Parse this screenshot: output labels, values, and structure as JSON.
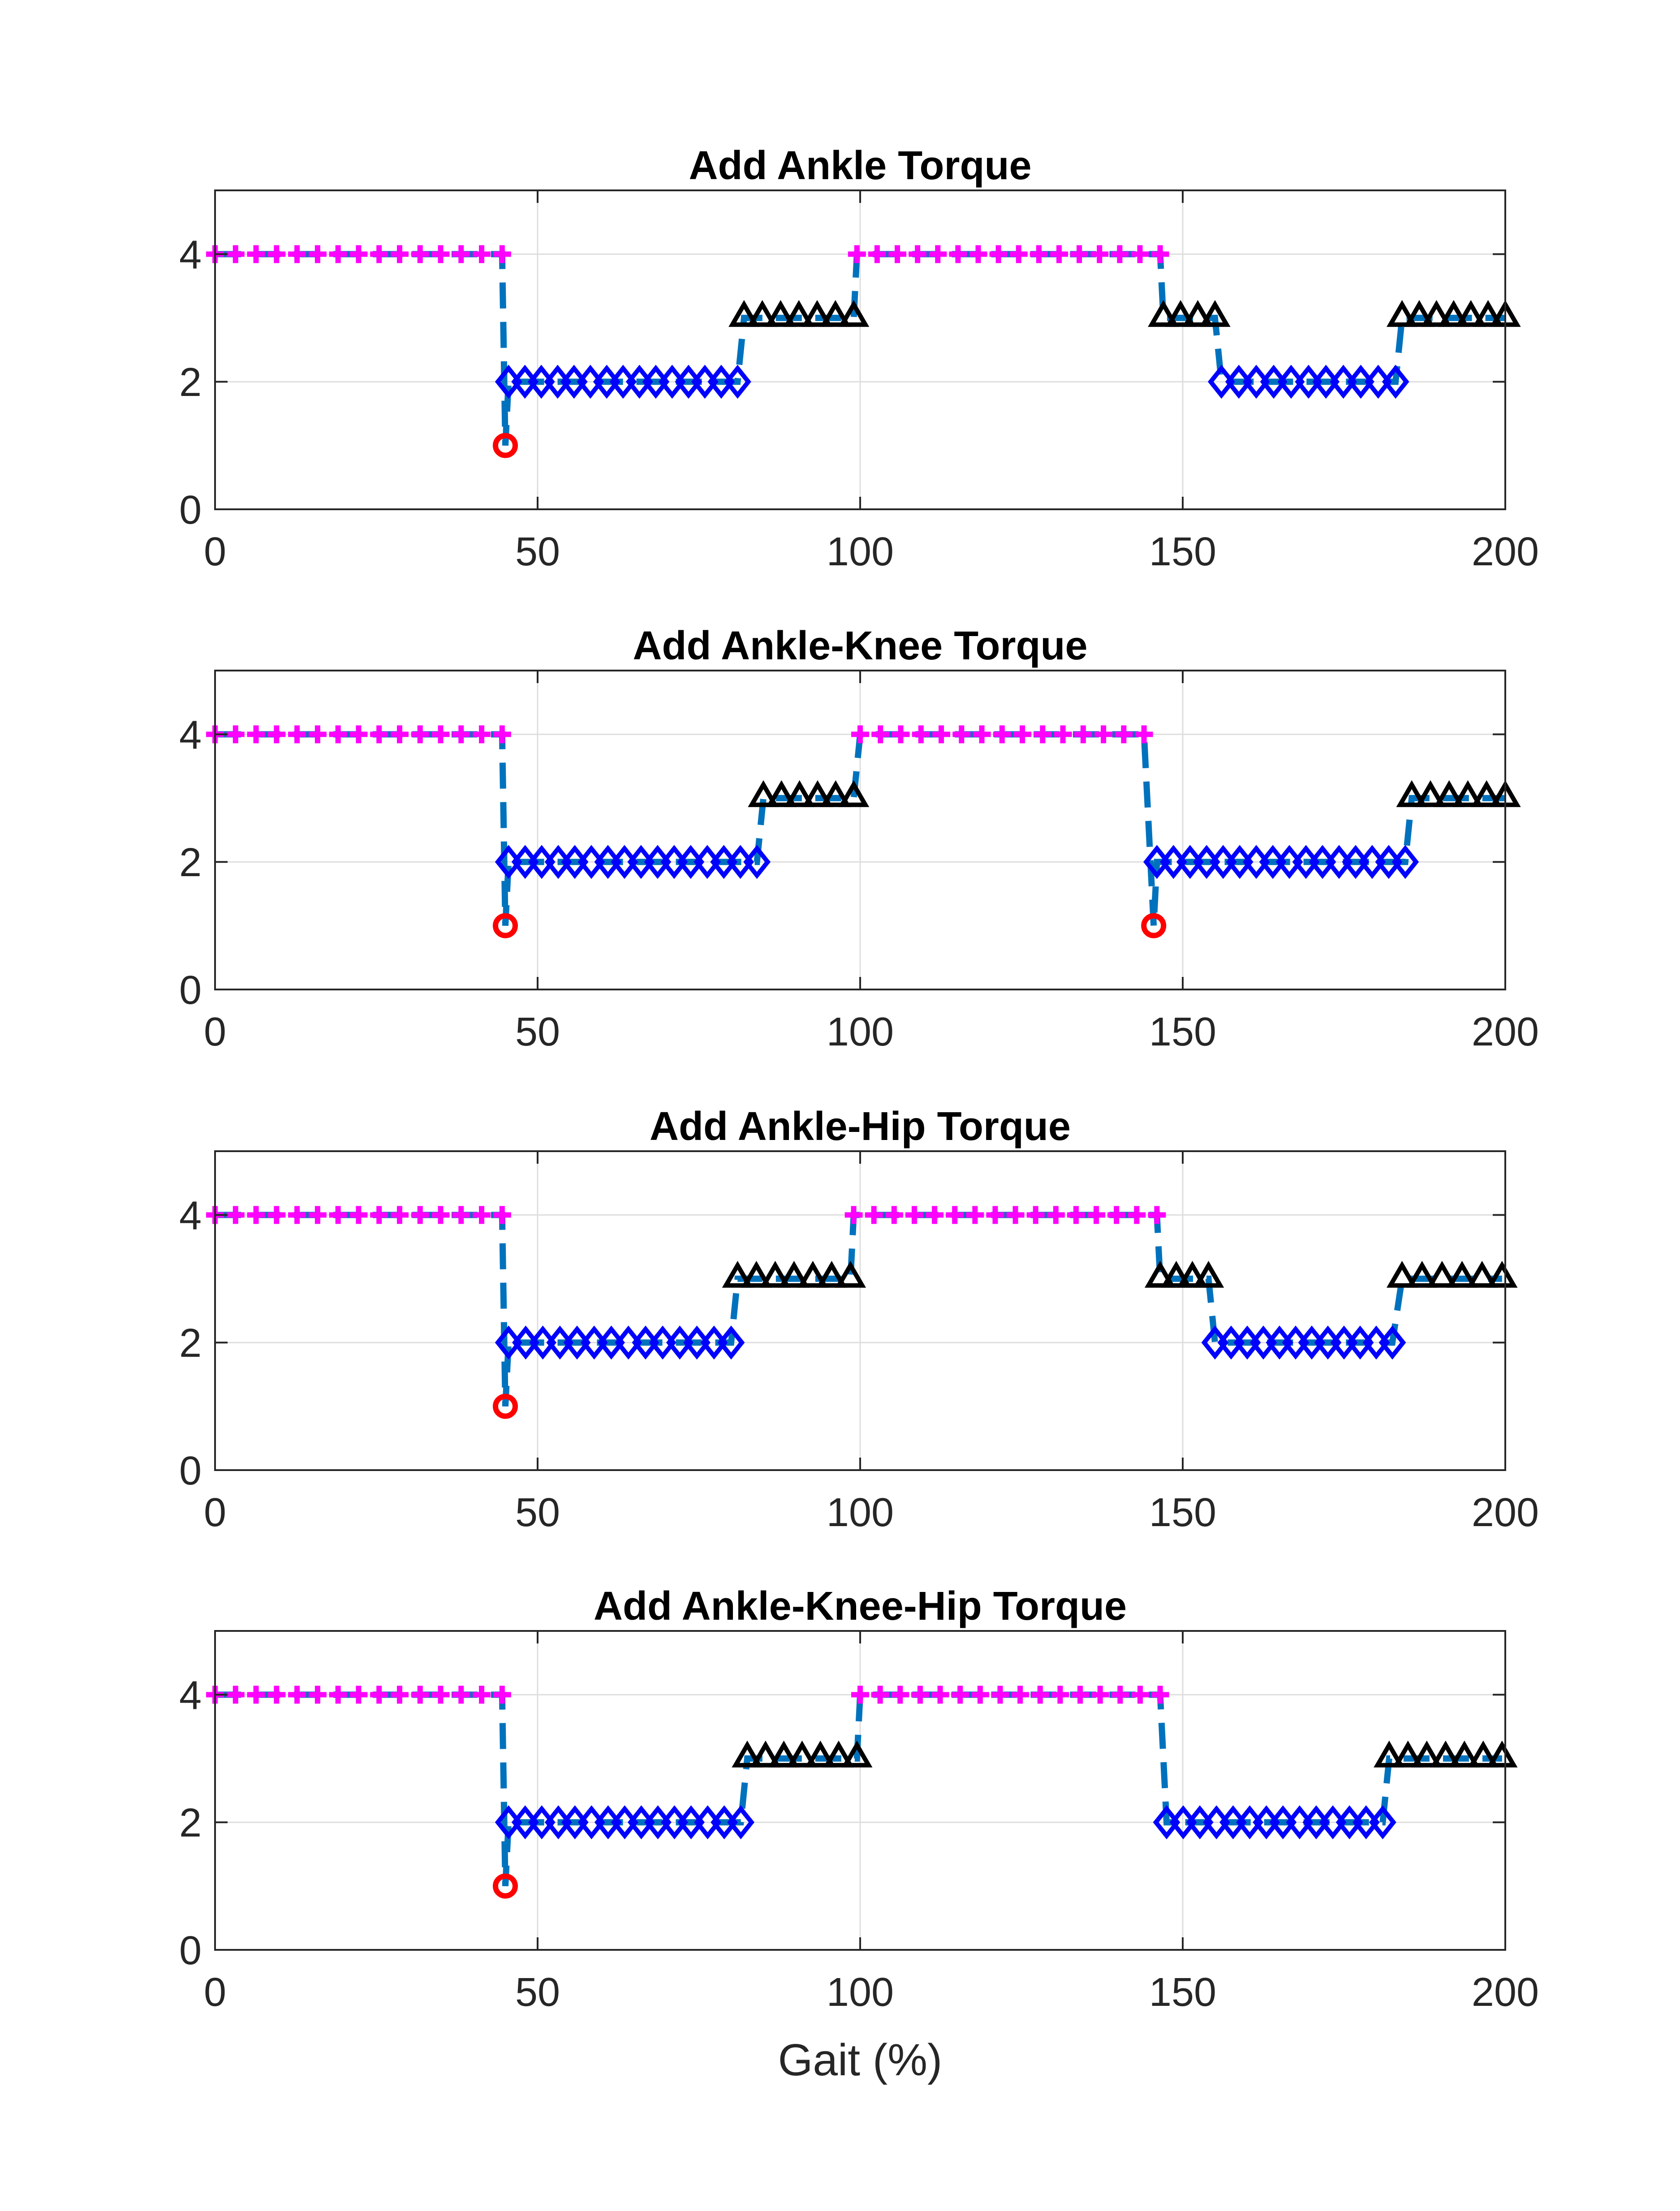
{
  "colors": {
    "background": "#ffffff",
    "axes": "#262626",
    "grid": "#dedede",
    "phase_line": "#0072bd",
    "phase_4_marker": "#ff00ff",
    "phase_3_marker": "#000000",
    "phase_2_marker": "#0000ff",
    "phase_1_marker": "#ff0000"
  },
  "markers": {
    "4": "plus",
    "3": "triangle",
    "2": "diamond",
    "1": "circle"
  },
  "chart_data": [
    {
      "type": "line",
      "title": "Add Ankle Torque",
      "xlabel": "",
      "ylabel": "",
      "xlim": [
        0,
        200
      ],
      "ylim": [
        0,
        5
      ],
      "xticks": [
        0,
        50,
        100,
        150,
        200
      ],
      "yticks": [
        0,
        2,
        4
      ],
      "grid": true,
      "segments": [
        {
          "phase": 4,
          "x_start": 0,
          "x_end": 44.5
        },
        {
          "phase": 1,
          "x_start": 45,
          "x_end": 45
        },
        {
          "phase": 2,
          "x_start": 45.5,
          "x_end": 81
        },
        {
          "phase": 3,
          "x_start": 82,
          "x_end": 99
        },
        {
          "phase": 4,
          "x_start": 99.5,
          "x_end": 146.5
        },
        {
          "phase": 3,
          "x_start": 147,
          "x_end": 155
        },
        {
          "phase": 2,
          "x_start": 156,
          "x_end": 183
        },
        {
          "phase": 3,
          "x_start": 184,
          "x_end": 200
        }
      ]
    },
    {
      "type": "line",
      "title": "Add Ankle-Knee Torque",
      "xlabel": "",
      "ylabel": "",
      "xlim": [
        0,
        200
      ],
      "ylim": [
        0,
        5
      ],
      "xticks": [
        0,
        50,
        100,
        150,
        200
      ],
      "yticks": [
        0,
        2,
        4
      ],
      "grid": true,
      "segments": [
        {
          "phase": 4,
          "x_start": 0,
          "x_end": 44.5
        },
        {
          "phase": 1,
          "x_start": 45,
          "x_end": 45
        },
        {
          "phase": 2,
          "x_start": 45.5,
          "x_end": 84
        },
        {
          "phase": 3,
          "x_start": 85,
          "x_end": 99
        },
        {
          "phase": 4,
          "x_start": 100,
          "x_end": 144
        },
        {
          "phase": 1,
          "x_start": 145.5,
          "x_end": 145.5
        },
        {
          "phase": 2,
          "x_start": 146,
          "x_end": 184.5
        },
        {
          "phase": 3,
          "x_start": 185.5,
          "x_end": 200
        }
      ]
    },
    {
      "type": "line",
      "title": "Add Ankle-Hip Torque",
      "xlabel": "",
      "ylabel": "",
      "xlim": [
        0,
        200
      ],
      "ylim": [
        0,
        5
      ],
      "xticks": [
        0,
        50,
        100,
        150,
        200
      ],
      "yticks": [
        0,
        2,
        4
      ],
      "grid": true,
      "segments": [
        {
          "phase": 4,
          "x_start": 0,
          "x_end": 44.5
        },
        {
          "phase": 1,
          "x_start": 45,
          "x_end": 45
        },
        {
          "phase": 2,
          "x_start": 45.5,
          "x_end": 80
        },
        {
          "phase": 3,
          "x_start": 81,
          "x_end": 98.5
        },
        {
          "phase": 4,
          "x_start": 99,
          "x_end": 146
        },
        {
          "phase": 3,
          "x_start": 146.5,
          "x_end": 154
        },
        {
          "phase": 2,
          "x_start": 155,
          "x_end": 182.5
        },
        {
          "phase": 3,
          "x_start": 184,
          "x_end": 199.5
        }
      ]
    },
    {
      "type": "line",
      "title": "Add Ankle-Knee-Hip Torque",
      "xlabel": "Gait (%)",
      "ylabel": "",
      "xlim": [
        0,
        200
      ],
      "ylim": [
        0,
        5
      ],
      "xticks": [
        0,
        50,
        100,
        150,
        200
      ],
      "yticks": [
        0,
        2,
        4
      ],
      "grid": true,
      "segments": [
        {
          "phase": 4,
          "x_start": 0,
          "x_end": 44.5
        },
        {
          "phase": 1,
          "x_start": 45,
          "x_end": 45
        },
        {
          "phase": 2,
          "x_start": 45.5,
          "x_end": 81.5
        },
        {
          "phase": 3,
          "x_start": 82.5,
          "x_end": 99.5
        },
        {
          "phase": 4,
          "x_start": 100,
          "x_end": 146.5
        },
        {
          "phase": 2,
          "x_start": 147.5,
          "x_end": 181
        },
        {
          "phase": 3,
          "x_start": 182,
          "x_end": 199.5
        }
      ]
    }
  ]
}
